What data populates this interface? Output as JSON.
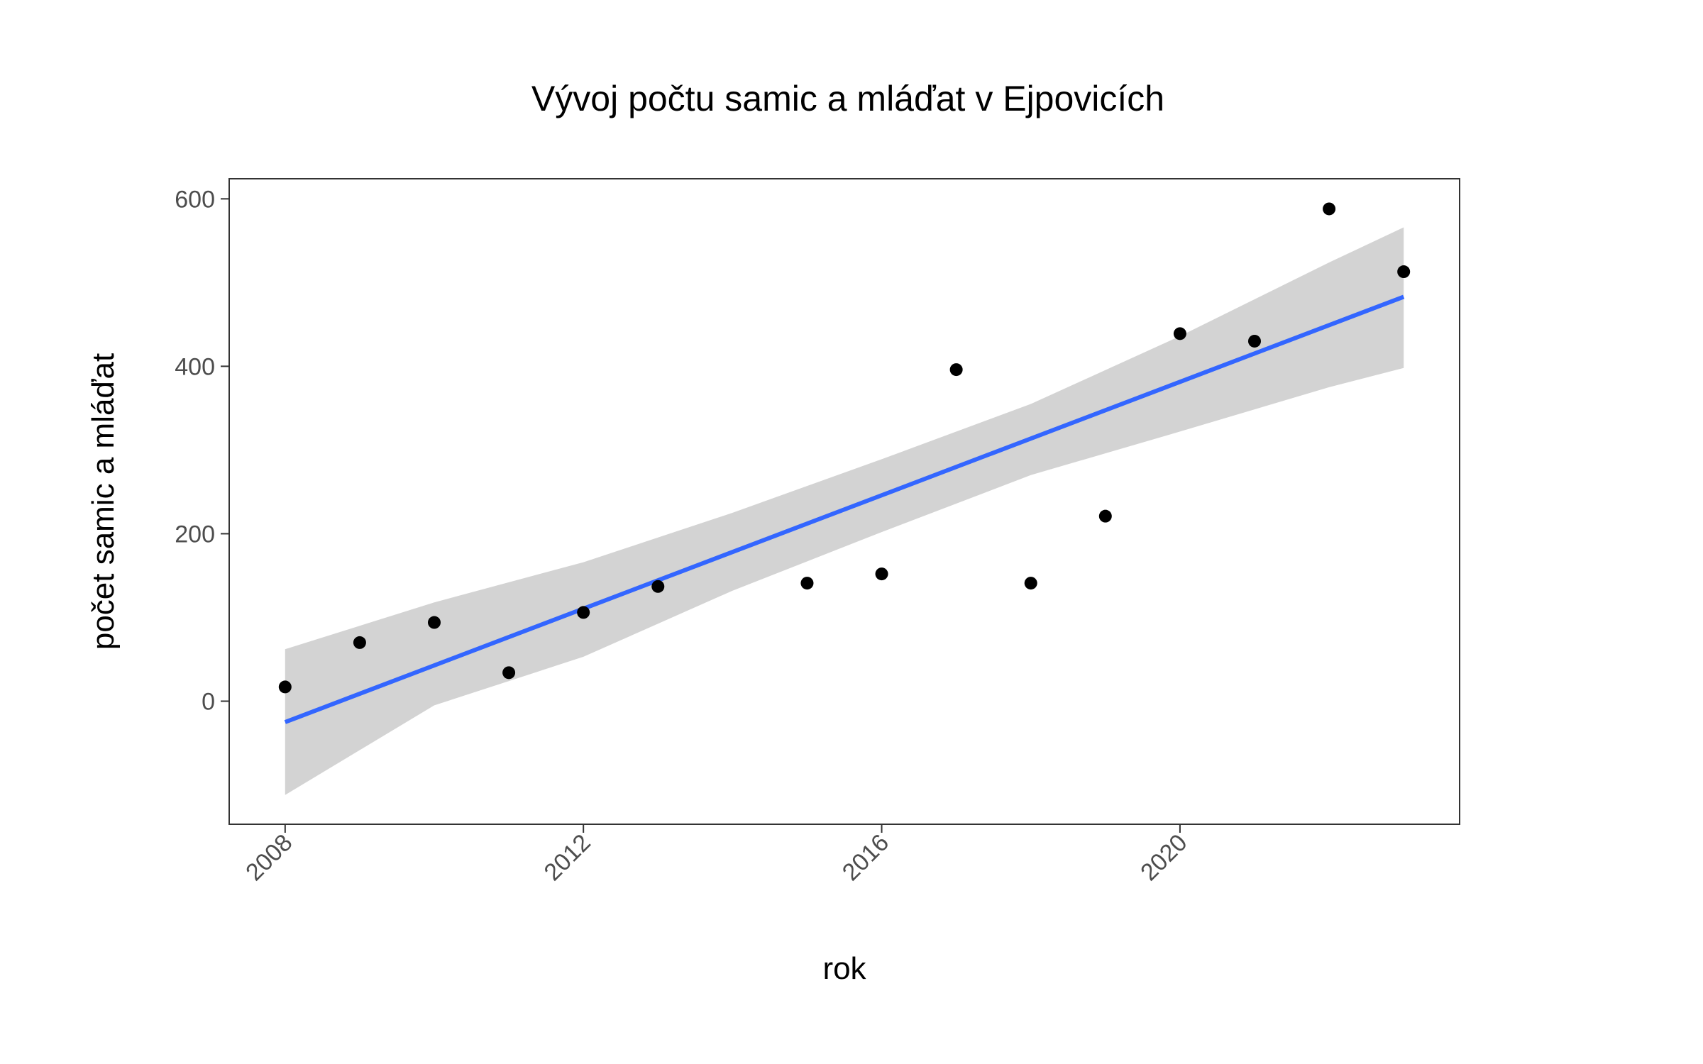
{
  "chart_data": {
    "type": "scatter",
    "title": "Vývoj počtu samic a mláďat v Ejpovicích",
    "xlabel": "rok",
    "ylabel": "počet samic a mláďat",
    "xlim": [
      2007.25,
      2023.75
    ],
    "ylim": [
      -147,
      624
    ],
    "x_ticks": [
      2008,
      2012,
      2016,
      2020
    ],
    "y_ticks": [
      0,
      200,
      400,
      600
    ],
    "grid": false,
    "legend": "none",
    "points": {
      "x": [
        2008,
        2009,
        2010,
        2011,
        2012,
        2013,
        2015,
        2016,
        2017,
        2018,
        2019,
        2020,
        2021,
        2022,
        2023
      ],
      "y": [
        17,
        70,
        94,
        34,
        106,
        137,
        141,
        152,
        396,
        141,
        221,
        439,
        430,
        588,
        513
      ]
    },
    "trend_line": {
      "x": [
        2008,
        2023
      ],
      "y": [
        -25,
        483
      ]
    },
    "confidence_band": {
      "x": [
        2008,
        2010,
        2012,
        2014,
        2016,
        2018,
        2020,
        2022,
        2023
      ],
      "lower": [
        -112,
        -5,
        53,
        132,
        202,
        270,
        322,
        375,
        398
      ],
      "upper": [
        62,
        118,
        166,
        225,
        289,
        355,
        436,
        524,
        566
      ]
    },
    "colors": {
      "points": "#000000",
      "trend_line": "#3366ff",
      "confidence_band": "#d3d3d3",
      "panel_border": "#333333",
      "tick_text": "#4d4d4d"
    }
  }
}
